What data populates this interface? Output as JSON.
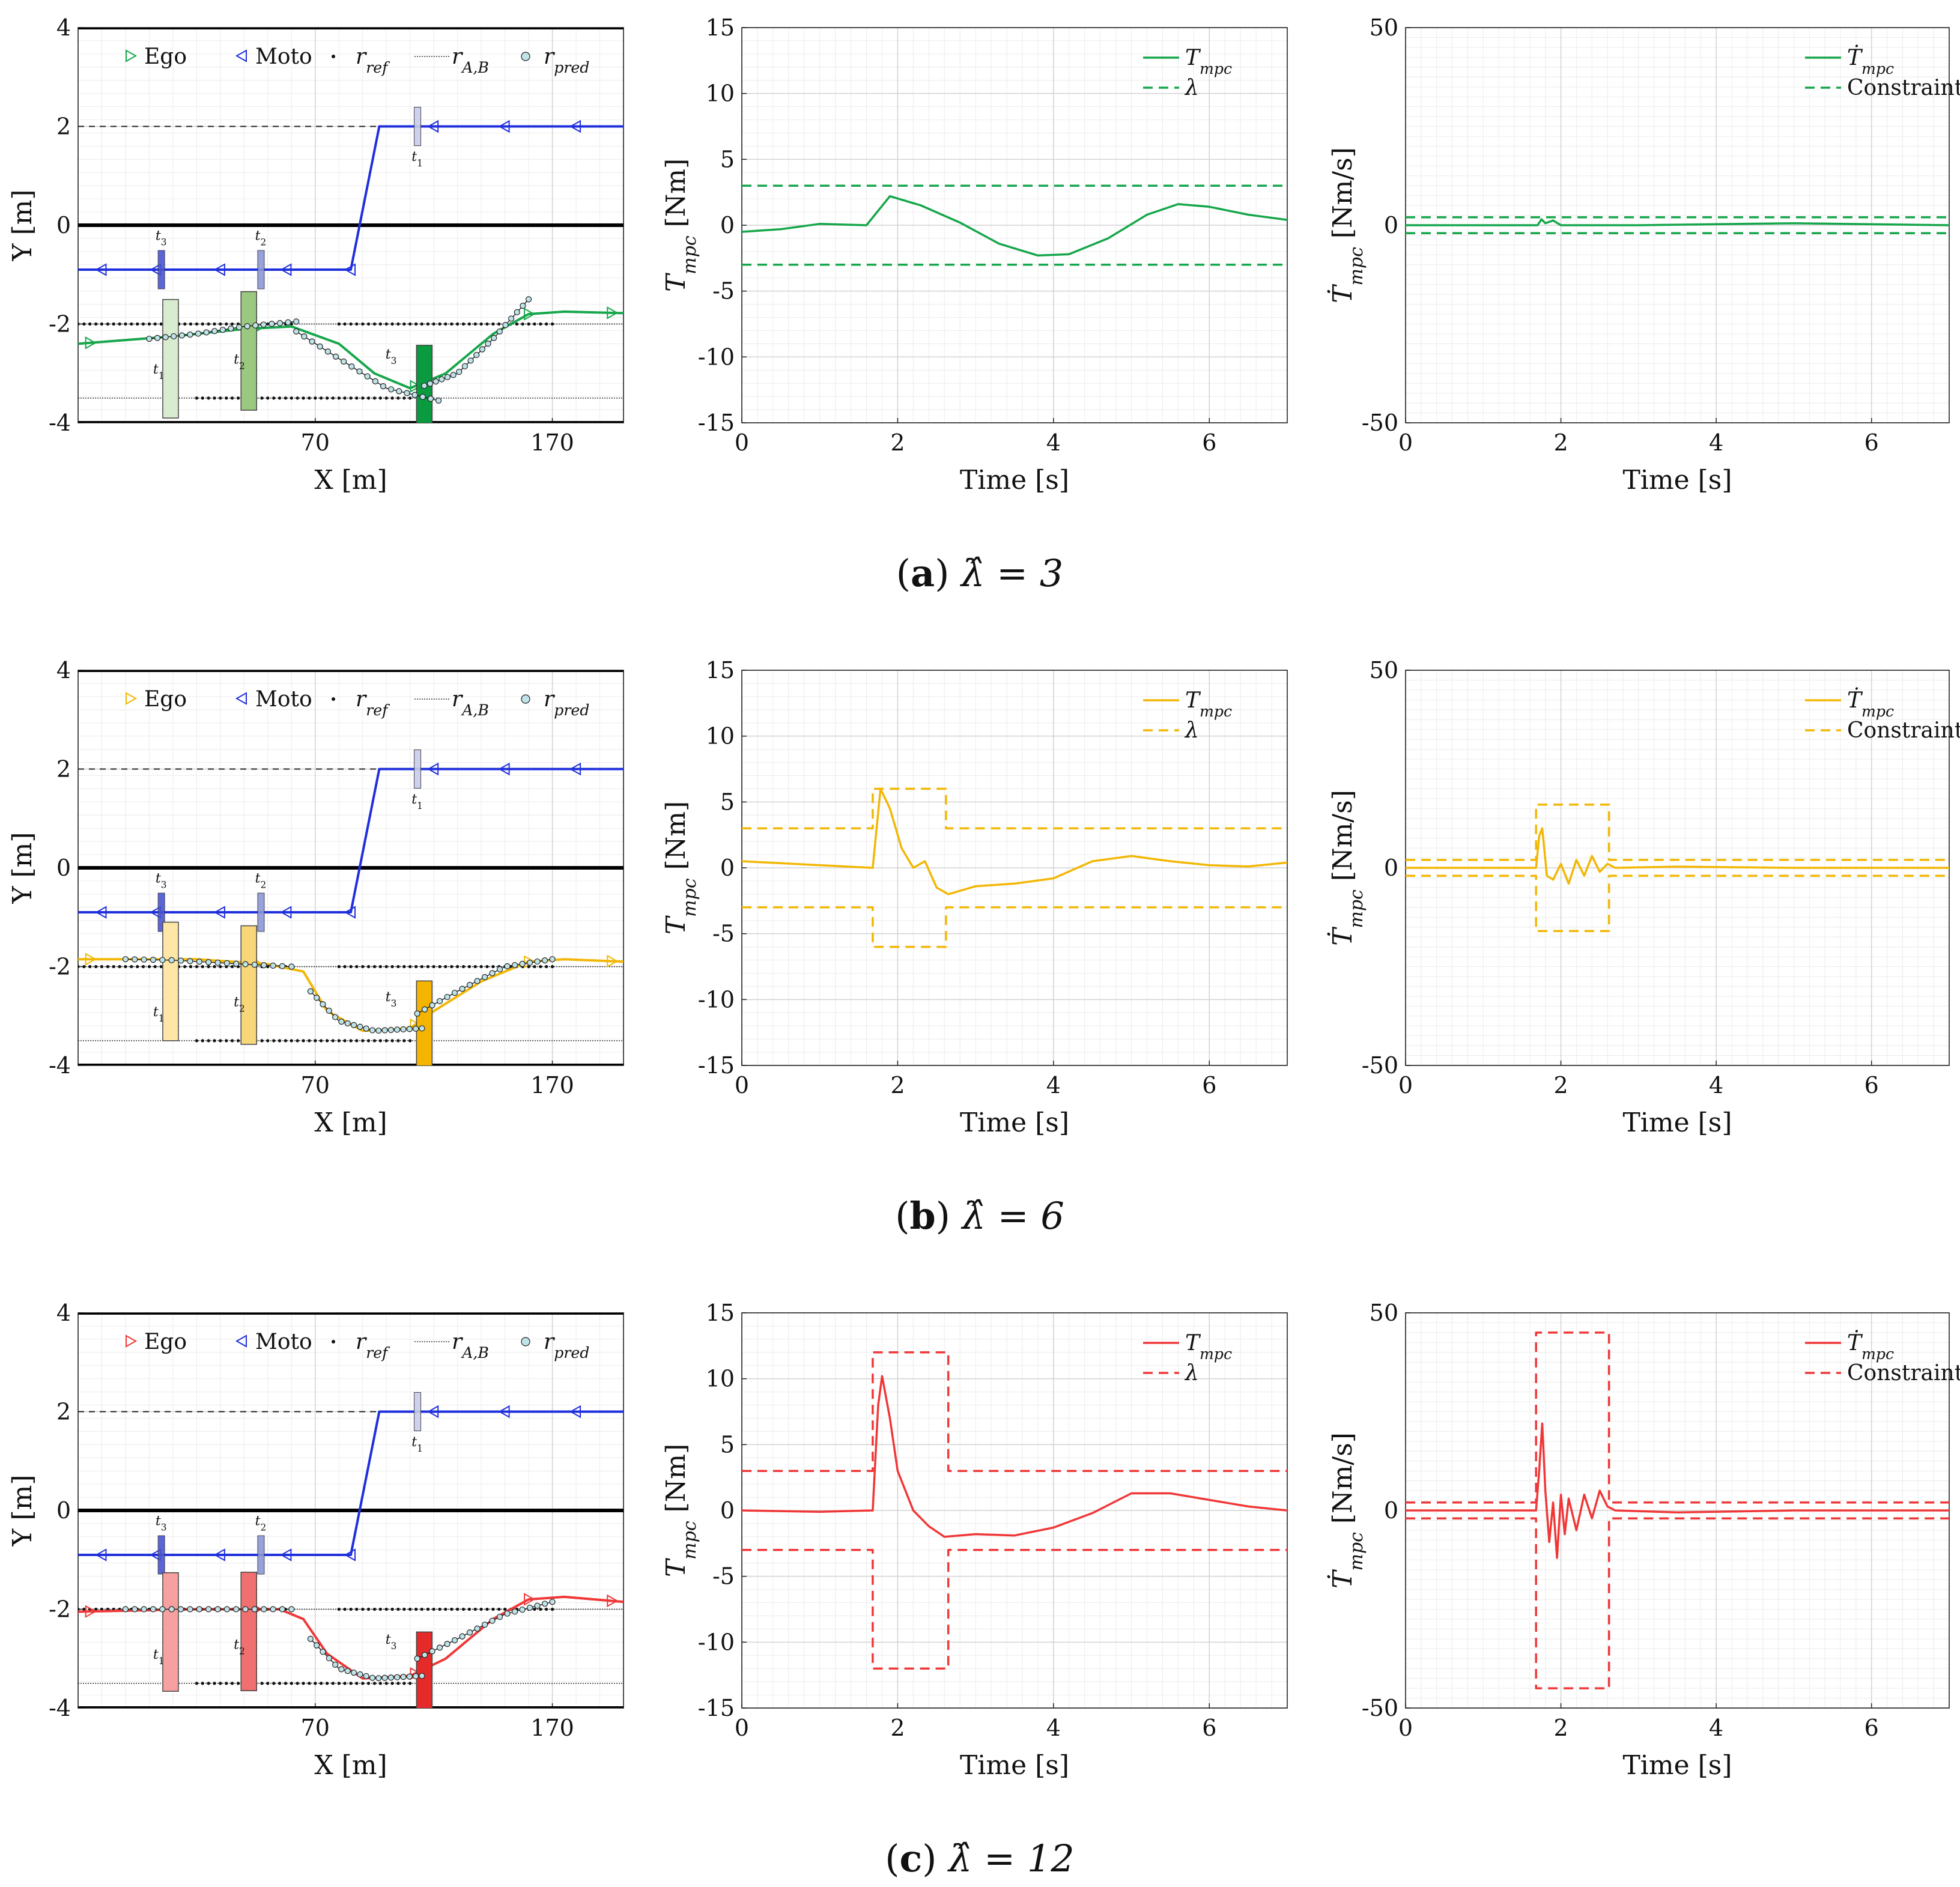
{
  "colors": {
    "green": "#16a64b",
    "yellow": "#f2b705",
    "red": "#f03737",
    "blue": "#1f2fdc"
  },
  "captions": [
    {
      "label": "a",
      "text": "λ̂ = 3"
    },
    {
      "label": "b",
      "text": "λ̂ = 6"
    },
    {
      "label": "c",
      "text": "λ̂ = 12"
    }
  ],
  "chart_data": [
    {
      "type": "line",
      "panel": "a-trajectory",
      "xlabel": "X [m]",
      "ylabel": "Y [m]",
      "xlim": [
        -30,
        200
      ],
      "ylim": [
        -4,
        4
      ],
      "xticks": [
        70,
        170
      ],
      "yticks": [
        -4,
        -2,
        0,
        2,
        4
      ],
      "legend": [
        "Ego",
        "Moto",
        "r_ref",
        "r_A,B",
        "r_pred"
      ],
      "legend_position": "top",
      "time_labels": [
        "t1",
        "t2",
        "t3"
      ],
      "series": [
        {
          "name": "Ego",
          "x": [
            -30,
            10,
            40,
            60,
            80,
            95,
            110,
            125,
            145,
            160,
            175,
            200
          ],
          "y": [
            -2.4,
            -2.25,
            -2.1,
            -2.05,
            -2.4,
            -3.0,
            -3.3,
            -3.0,
            -2.2,
            -1.8,
            -1.75,
            -1.78
          ]
        },
        {
          "name": "Moto",
          "x": [
            -30,
            85,
            97,
            200
          ],
          "y": [
            -0.9,
            -0.9,
            2.0,
            2.0
          ]
        },
        {
          "name": "r_pred t1",
          "x": [
            0,
            20,
            40,
            62
          ],
          "y": [
            -2.3,
            -2.2,
            -2.05,
            -1.95
          ]
        },
        {
          "name": "r_pred t2",
          "x": [
            62,
            80,
            100,
            122
          ],
          "y": [
            -2.15,
            -2.7,
            -3.3,
            -3.55
          ]
        },
        {
          "name": "r_pred t3",
          "x": [
            116,
            130,
            145,
            160
          ],
          "y": [
            -3.25,
            -3.0,
            -2.3,
            -1.5
          ]
        }
      ]
    },
    {
      "type": "line",
      "panel": "a-torque",
      "xlabel": "Time [s]",
      "ylabel": "T_mpc [Nm]",
      "xlim": [
        0,
        7
      ],
      "ylim": [
        -15,
        15
      ],
      "xticks": [
        0,
        2,
        4,
        6
      ],
      "yticks": [
        -15,
        -10,
        -5,
        0,
        5,
        10,
        15
      ],
      "legend": [
        "T_mpc",
        "λ"
      ],
      "legend_position": "top-right",
      "series": [
        {
          "name": "T_mpc",
          "x": [
            0,
            0.5,
            1.0,
            1.6,
            1.9,
            2.3,
            2.8,
            3.3,
            3.8,
            4.2,
            4.7,
            5.2,
            5.6,
            6.0,
            6.5,
            7.0
          ],
          "y": [
            -0.5,
            -0.3,
            0.1,
            0.0,
            2.2,
            1.5,
            0.2,
            -1.4,
            -2.3,
            -2.2,
            -1.0,
            0.8,
            1.6,
            1.4,
            0.8,
            0.4
          ]
        },
        {
          "name": "λ upper",
          "x": [
            0,
            7
          ],
          "y": [
            3,
            3
          ]
        },
        {
          "name": "λ lower",
          "x": [
            0,
            7
          ],
          "y": [
            -3,
            -3
          ]
        }
      ]
    },
    {
      "type": "line",
      "panel": "a-rate",
      "xlabel": "Time [s]",
      "ylabel": "Ṫ_mpc [Nm/s]",
      "xlim": [
        0,
        7
      ],
      "ylim": [
        -50,
        50
      ],
      "xticks": [
        0,
        2,
        4,
        6
      ],
      "yticks": [
        -50,
        0,
        50
      ],
      "legend": [
        "Ṫ_mpc",
        "Constraint"
      ],
      "legend_position": "top-right",
      "series": [
        {
          "name": "Ṫ_mpc",
          "x": [
            0,
            1.7,
            1.75,
            1.8,
            1.9,
            2.0,
            3,
            5,
            7
          ],
          "y": [
            0,
            0,
            1.5,
            0.5,
            1.2,
            0,
            0,
            0.5,
            0
          ]
        },
        {
          "name": "Constraint upper",
          "x": [
            0,
            7
          ],
          "y": [
            2,
            2
          ]
        },
        {
          "name": "Constraint lower",
          "x": [
            0,
            7
          ],
          "y": [
            -2,
            -2
          ]
        }
      ]
    },
    {
      "type": "line",
      "panel": "b-trajectory",
      "xlabel": "X [m]",
      "ylabel": "Y [m]",
      "xlim": [
        -30,
        200
      ],
      "ylim": [
        -4,
        4
      ],
      "xticks": [
        70,
        170
      ],
      "yticks": [
        -4,
        -2,
        0,
        2,
        4
      ],
      "legend": [
        "Ego",
        "Moto",
        "r_ref",
        "r_A,B",
        "r_pred"
      ],
      "legend_position": "top",
      "time_labels": [
        "t1",
        "t2",
        "t3"
      ],
      "series": [
        {
          "name": "Ego",
          "x": [
            -30,
            20,
            50,
            65,
            75,
            90,
            110,
            120,
            140,
            160,
            175,
            200
          ],
          "y": [
            -1.85,
            -1.85,
            -1.95,
            -2.1,
            -2.9,
            -3.3,
            -3.25,
            -2.9,
            -2.3,
            -1.9,
            -1.85,
            -1.9
          ]
        },
        {
          "name": "Moto",
          "x": [
            -30,
            85,
            97,
            200
          ],
          "y": [
            -0.9,
            -0.9,
            2.0,
            2.0
          ]
        },
        {
          "name": "r_pred t1",
          "x": [
            -10,
            10,
            40,
            60
          ],
          "y": [
            -1.85,
            -1.87,
            -1.95,
            -2.0
          ]
        },
        {
          "name": "r_pred t2",
          "x": [
            68,
            80,
            95,
            115
          ],
          "y": [
            -2.5,
            -3.1,
            -3.3,
            -3.25
          ]
        },
        {
          "name": "r_pred t3",
          "x": [
            113,
            130,
            150,
            170
          ],
          "y": [
            -2.95,
            -2.5,
            -2.0,
            -1.85
          ]
        }
      ]
    },
    {
      "type": "line",
      "panel": "b-torque",
      "xlabel": "Time [s]",
      "ylabel": "T_mpc [Nm]",
      "xlim": [
        0,
        7
      ],
      "ylim": [
        -15,
        15
      ],
      "xticks": [
        0,
        2,
        4,
        6
      ],
      "yticks": [
        -15,
        -10,
        -5,
        0,
        5,
        10,
        15
      ],
      "legend": [
        "T_mpc",
        "λ"
      ],
      "legend_position": "top-right",
      "series": [
        {
          "name": "T_mpc",
          "x": [
            0,
            1.0,
            1.68,
            1.78,
            1.9,
            2.05,
            2.2,
            2.35,
            2.5,
            2.65,
            3.0,
            3.5,
            4.0,
            4.5,
            5.0,
            5.5,
            6.0,
            6.5,
            7.0
          ],
          "y": [
            0.5,
            0.2,
            0.0,
            6.0,
            4.5,
            1.5,
            0.0,
            0.5,
            -1.5,
            -2.0,
            -1.4,
            -1.2,
            -0.8,
            0.5,
            0.9,
            0.5,
            0.2,
            0.1,
            0.4
          ]
        },
        {
          "name": "λ upper",
          "x": [
            0,
            1.68,
            1.68,
            2.62,
            2.62,
            7
          ],
          "y": [
            3,
            3,
            6,
            6,
            3,
            3
          ]
        },
        {
          "name": "λ lower",
          "x": [
            0,
            1.68,
            1.68,
            2.62,
            2.62,
            7
          ],
          "y": [
            -3,
            -3,
            -6,
            -6,
            -3,
            -3
          ]
        }
      ]
    },
    {
      "type": "line",
      "panel": "b-rate",
      "xlabel": "Time [s]",
      "ylabel": "Ṫ_mpc [Nm/s]",
      "xlim": [
        0,
        7
      ],
      "ylim": [
        -50,
        50
      ],
      "xticks": [
        0,
        2,
        4,
        6
      ],
      "yticks": [
        -50,
        0,
        50
      ],
      "legend": [
        "Ṫ_mpc",
        "Constraint"
      ],
      "legend_position": "top-right",
      "series": [
        {
          "name": "Ṫ_mpc",
          "x": [
            0,
            1.68,
            1.72,
            1.76,
            1.82,
            1.9,
            2.0,
            2.1,
            2.2,
            2.3,
            2.4,
            2.5,
            2.6,
            2.7,
            3.5,
            5,
            7
          ],
          "y": [
            0,
            0,
            8,
            10,
            -2,
            -3,
            1,
            -4,
            2,
            -2,
            3,
            -1,
            1,
            0,
            0.3,
            0,
            0
          ]
        },
        {
          "name": "Constraint upper",
          "x": [
            0,
            1.68,
            1.68,
            2.62,
            2.62,
            7
          ],
          "y": [
            2,
            2,
            16,
            16,
            2,
            2
          ]
        },
        {
          "name": "Constraint lower",
          "x": [
            0,
            1.68,
            1.68,
            2.62,
            2.62,
            7
          ],
          "y": [
            -2,
            -2,
            -16,
            -16,
            -2,
            -2
          ]
        }
      ]
    },
    {
      "type": "line",
      "panel": "c-trajectory",
      "xlabel": "X [m]",
      "ylabel": "Y [m]",
      "xlim": [
        -30,
        200
      ],
      "ylim": [
        -4,
        4
      ],
      "xticks": [
        70,
        170
      ],
      "yticks": [
        -4,
        -2,
        0,
        2,
        4
      ],
      "legend": [
        "Ego",
        "Moto",
        "r_ref",
        "r_A,B",
        "r_pred"
      ],
      "legend_position": "top",
      "time_labels": [
        "t1",
        "t2",
        "t3"
      ],
      "series": [
        {
          "name": "Ego",
          "x": [
            -30,
            20,
            55,
            65,
            75,
            90,
            110,
            125,
            145,
            160,
            175,
            200
          ],
          "y": [
            -2.05,
            -2.0,
            -2.0,
            -2.2,
            -2.9,
            -3.4,
            -3.35,
            -3.0,
            -2.2,
            -1.8,
            -1.75,
            -1.85
          ]
        },
        {
          "name": "Moto",
          "x": [
            -30,
            85,
            97,
            200
          ],
          "y": [
            -0.9,
            -0.9,
            2.0,
            2.0
          ]
        },
        {
          "name": "r_pred t1",
          "x": [
            -10,
            10,
            40,
            60
          ],
          "y": [
            -2.0,
            -2.0,
            -2.0,
            -2.0
          ]
        },
        {
          "name": "r_pred t2",
          "x": [
            68,
            80,
            95,
            115
          ],
          "y": [
            -2.6,
            -3.2,
            -3.4,
            -3.35
          ]
        },
        {
          "name": "r_pred t3",
          "x": [
            113,
            130,
            150,
            170
          ],
          "y": [
            -3.0,
            -2.6,
            -2.1,
            -1.85
          ]
        }
      ]
    },
    {
      "type": "line",
      "panel": "c-torque",
      "xlabel": "Time [s]",
      "ylabel": "T_mpc [Nm]",
      "xlim": [
        0,
        7
      ],
      "ylim": [
        -15,
        15
      ],
      "xticks": [
        0,
        2,
        4,
        6
      ],
      "yticks": [
        -15,
        -10,
        -5,
        0,
        5,
        10,
        15
      ],
      "legend": [
        "T_mpc",
        "λ"
      ],
      "legend_position": "top-right",
      "series": [
        {
          "name": "T_mpc",
          "x": [
            0,
            1.0,
            1.68,
            1.75,
            1.8,
            1.9,
            2.0,
            2.2,
            2.4,
            2.6,
            3.0,
            3.5,
            4.0,
            4.5,
            5.0,
            5.5,
            6.0,
            6.5,
            7.0
          ],
          "y": [
            0,
            -0.1,
            0.0,
            8.0,
            10.2,
            7.0,
            3.0,
            0.0,
            -1.2,
            -2.0,
            -1.8,
            -1.9,
            -1.3,
            -0.2,
            1.3,
            1.3,
            0.8,
            0.3,
            0.0
          ]
        },
        {
          "name": "λ upper",
          "x": [
            0,
            1.68,
            1.68,
            2.65,
            2.65,
            7
          ],
          "y": [
            3,
            3,
            12,
            12,
            3,
            3
          ]
        },
        {
          "name": "λ lower",
          "x": [
            0,
            1.68,
            1.68,
            2.65,
            2.65,
            7
          ],
          "y": [
            -3,
            -3,
            -12,
            -12,
            -3,
            -3
          ]
        }
      ]
    },
    {
      "type": "line",
      "panel": "c-rate",
      "xlabel": "Time [s]",
      "ylabel": "Ṫ_mpc [Nm/s]",
      "xlim": [
        0,
        7
      ],
      "ylim": [
        -50,
        50
      ],
      "xticks": [
        0,
        2,
        4,
        6
      ],
      "yticks": [
        -50,
        0,
        50
      ],
      "legend": [
        "Ṫ_mpc",
        "Constraint"
      ],
      "legend_position": "top-right",
      "series": [
        {
          "name": "Ṫ_mpc",
          "x": [
            0,
            1.68,
            1.72,
            1.76,
            1.8,
            1.85,
            1.9,
            1.95,
            2.0,
            2.05,
            2.1,
            2.2,
            2.3,
            2.4,
            2.5,
            2.6,
            2.7,
            3.5,
            5,
            7
          ],
          "y": [
            0,
            0,
            10,
            22,
            5,
            -8,
            2,
            -12,
            4,
            -6,
            3,
            -5,
            4,
            -2,
            5,
            1,
            0,
            -0.5,
            0,
            0
          ]
        },
        {
          "name": "Constraint upper",
          "x": [
            0,
            1.68,
            1.68,
            2.62,
            2.62,
            7
          ],
          "y": [
            2,
            2,
            45,
            45,
            2,
            2
          ]
        },
        {
          "name": "Constraint lower",
          "x": [
            0,
            1.68,
            1.68,
            2.62,
            2.62,
            7
          ],
          "y": [
            -2,
            -2,
            -45,
            -45,
            -2,
            -2
          ]
        }
      ]
    }
  ]
}
